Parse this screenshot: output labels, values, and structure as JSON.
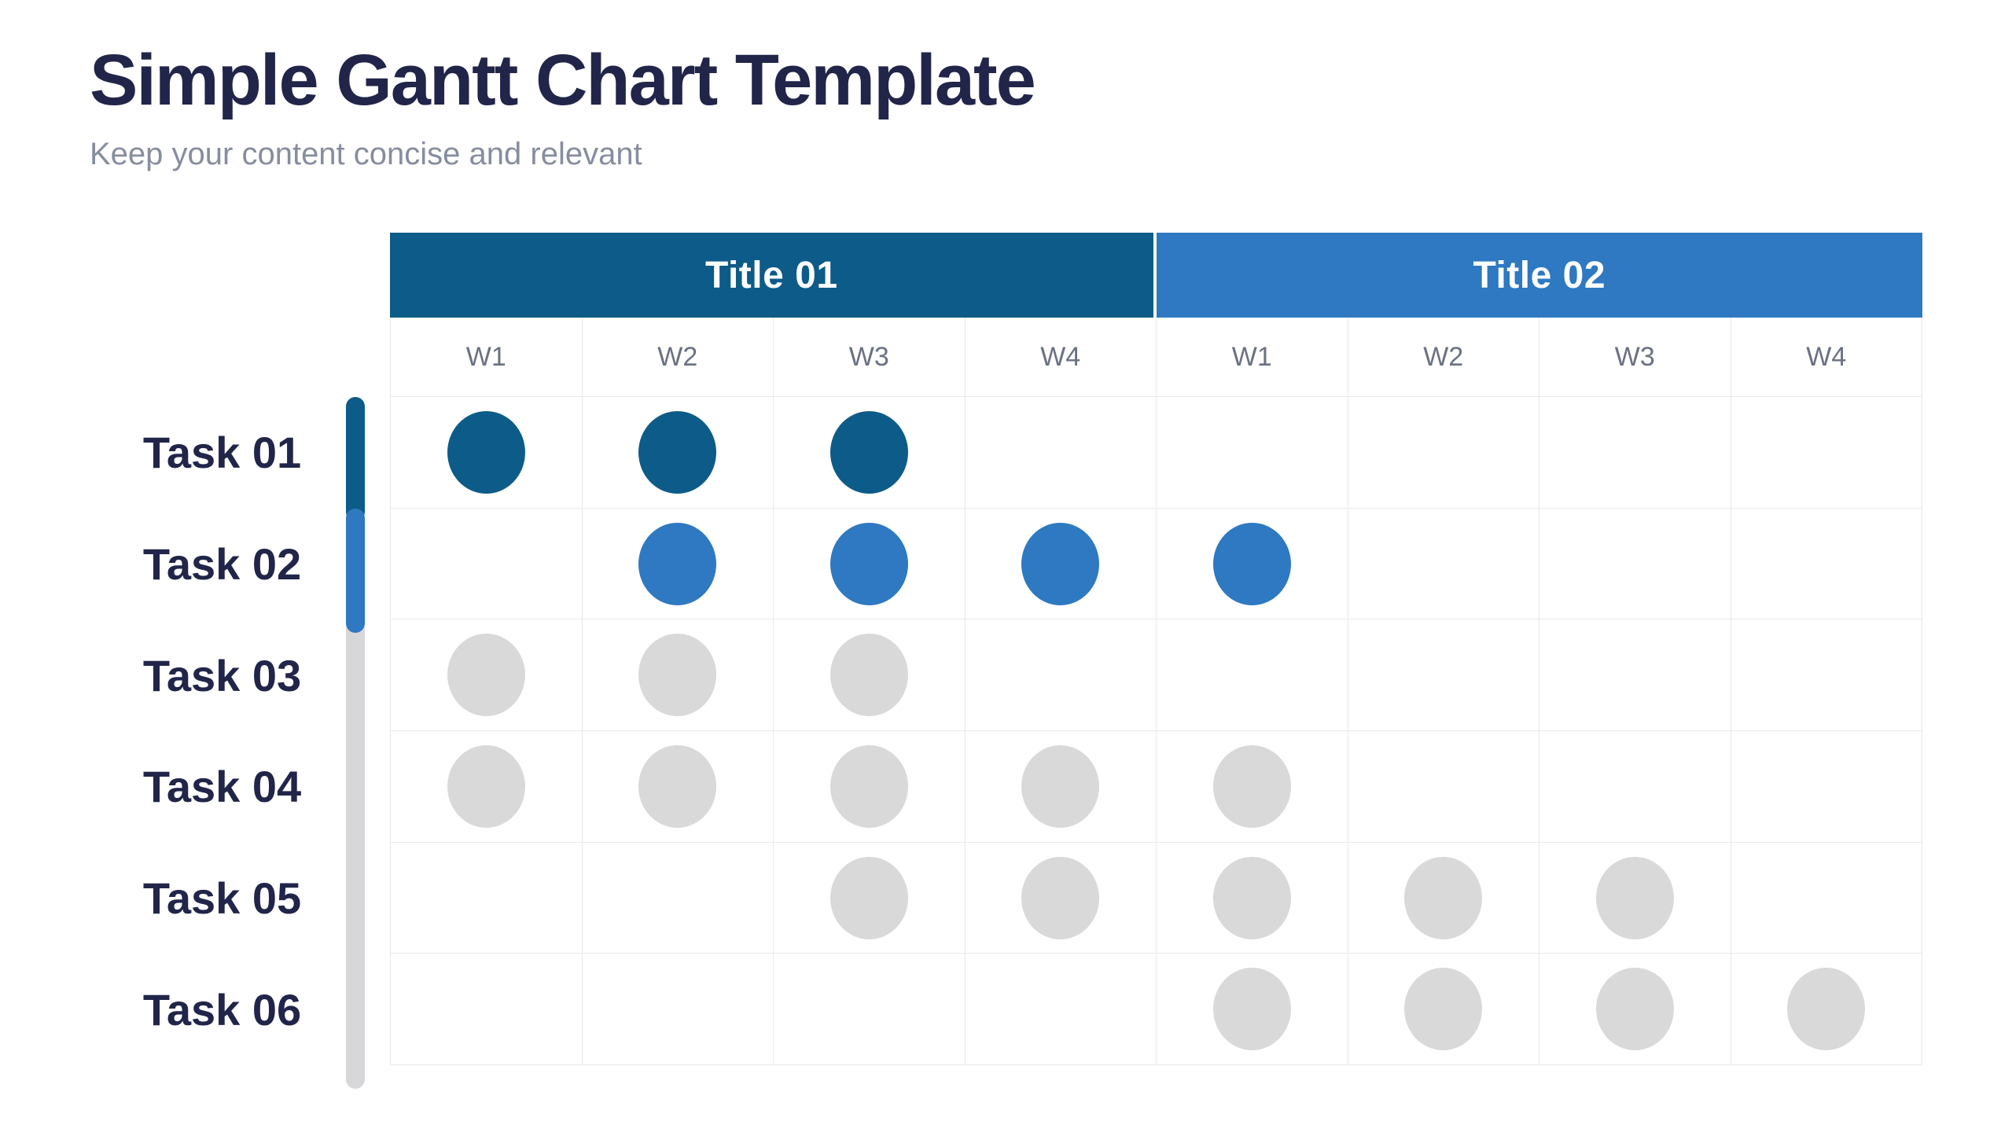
{
  "page": {
    "title": "Simple Gantt Chart Template",
    "subtitle": "Keep your content concise and relevant"
  },
  "chart_data": {
    "type": "gantt",
    "title": "Simple Gantt Chart Template",
    "subtitle": "Keep your content concise and relevant",
    "groups": [
      {
        "label": "Title 01",
        "weeks": [
          "W1",
          "W2",
          "W3",
          "W4"
        ]
      },
      {
        "label": "Title 02",
        "weeks": [
          "W1",
          "W2",
          "W3",
          "W4"
        ]
      }
    ],
    "columns": [
      "W1",
      "W2",
      "W3",
      "W4",
      "W1",
      "W2",
      "W3",
      "W4"
    ],
    "tasks": [
      {
        "label": "Task 01",
        "color": "dark",
        "weeks": [
          1,
          2,
          3
        ]
      },
      {
        "label": "Task 02",
        "color": "blue",
        "weeks": [
          2,
          3,
          4,
          5
        ]
      },
      {
        "label": "Task 03",
        "color": "gray",
        "weeks": [
          1,
          2,
          3
        ]
      },
      {
        "label": "Task 04",
        "color": "gray",
        "weeks": [
          1,
          2,
          3,
          4,
          5
        ]
      },
      {
        "label": "Task 05",
        "color": "gray",
        "weeks": [
          3,
          4,
          5,
          6,
          7
        ]
      },
      {
        "label": "Task 06",
        "color": "gray",
        "weeks": [
          5,
          6,
          7,
          8
        ]
      }
    ],
    "progress_track": {
      "segments": [
        {
          "rows": 1,
          "color": "dark"
        },
        {
          "rows": 1,
          "color": "blue"
        },
        {
          "rows": 4,
          "color": "bar_gray"
        }
      ]
    },
    "colors": {
      "dark": "#0d5b88",
      "blue": "#2e79c1",
      "gray": "#d9d9d9",
      "bar_gray": "#d7d7d9",
      "title_text": "#212549",
      "subtitle_text": "#878da0",
      "week_text": "#6b7183",
      "grid_line": "#e8e9ec",
      "header_text": "#ffffff"
    },
    "layout": {
      "legend": "none",
      "grid": "on"
    }
  }
}
